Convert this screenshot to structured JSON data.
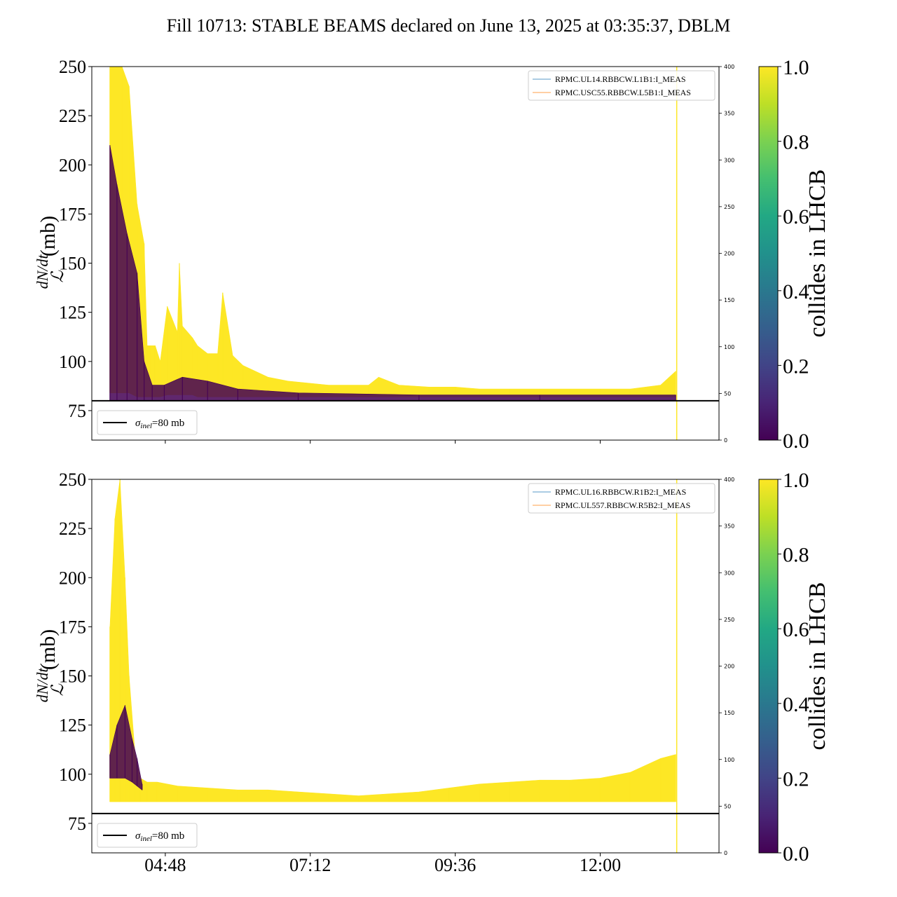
{
  "title": "Fill 10713: STABLE BEAMS declared on June 13, 2025 at 03:35:37, DBLM",
  "colors": {
    "yellow": "#fde725",
    "dark_purple": "#440154",
    "blue_line": "#1f77b4",
    "orange_line": "#ff7f0e",
    "threshold": "#000000"
  },
  "colorbar": {
    "label": "collides in LHCB",
    "colormap": "viridis",
    "ticks": [
      "0.0",
      "0.2",
      "0.4",
      "0.6",
      "0.8",
      "1.0"
    ]
  },
  "chart_data": [
    {
      "type": "line",
      "panel": "top",
      "xlabel": "",
      "ylabel": "dN/dt / ℒ (mb)",
      "ylim": [
        60,
        250
      ],
      "y_ticks": [
        75,
        100,
        125,
        150,
        175,
        200,
        225,
        250
      ],
      "y2lim": [
        0,
        400
      ],
      "y2_ticks": [
        0,
        50,
        100,
        150,
        200,
        250,
        300,
        350,
        400
      ],
      "x_ticks": [
        "04:48",
        "07:12",
        "09:36",
        "12:00"
      ],
      "x_tick_labels_shown": false,
      "xlim": [
        "03:35",
        "13:58"
      ],
      "grid": false,
      "legend_upper": {
        "placement": "top-right",
        "entries": [
          {
            "label": "RPMC.UL14.RBBCW.L1B1:I_MEAS",
            "color": "#1f77b4"
          },
          {
            "label": "RPMC.USC55.RBBCW.L5B1:I_MEAS",
            "color": "#ff7f0e"
          }
        ]
      },
      "legend_lower": {
        "placement": "bottom-left",
        "label": "σinel=80 mb",
        "threshold": 80
      },
      "envelope_collides_1": {
        "x": [
          "03:53",
          "04:05",
          "04:12",
          "04:20",
          "04:27",
          "04:30",
          "04:33",
          "04:38",
          "04:43",
          "04:50",
          "05:00",
          "05:02",
          "05:05",
          "05:15",
          "05:20",
          "05:30",
          "05:40",
          "05:45",
          "05:55",
          "06:05",
          "06:30",
          "06:50",
          "07:30",
          "08:10",
          "08:20",
          "08:40",
          "09:10",
          "09:36",
          "10:00",
          "10:30",
          "11:00",
          "11:30",
          "12:00",
          "12:30",
          "13:00",
          "13:15"
        ],
        "upper": [
          250,
          250,
          240,
          180,
          160,
          108,
          108,
          108,
          100,
          128,
          115,
          150,
          118,
          112,
          108,
          104,
          104,
          135,
          103,
          98,
          92,
          90,
          88,
          88,
          92,
          88,
          87,
          87,
          86,
          86,
          86,
          86,
          86,
          86,
          88,
          95
        ],
        "lower": [
          84,
          84,
          84,
          82,
          82,
          82,
          82,
          82,
          82,
          83,
          83,
          83,
          83,
          83,
          82,
          82,
          82,
          82,
          82,
          82,
          82,
          82,
          82,
          82,
          82,
          82,
          82,
          82,
          82,
          82,
          82,
          82,
          82,
          82,
          82,
          82
        ]
      },
      "envelope_collides_0": {
        "x": [
          "03:53",
          "04:00",
          "04:10",
          "04:20",
          "04:27",
          "04:35",
          "04:47",
          "05:05",
          "05:30",
          "06:00",
          "07:00",
          "09:00",
          "11:00",
          "13:15"
        ],
        "upper": [
          210,
          190,
          165,
          145,
          100,
          88,
          88,
          92,
          90,
          86,
          84,
          83,
          83,
          83
        ],
        "lower": [
          80,
          80,
          80,
          80,
          80,
          80,
          80,
          80,
          80,
          80,
          80,
          80,
          80,
          80
        ]
      },
      "vertical_marker_x": "13:16"
    },
    {
      "type": "line",
      "panel": "bottom",
      "xlabel": "",
      "ylabel": "dN/dt / ℒ (mb)",
      "ylim": [
        60,
        250
      ],
      "y_ticks": [
        75,
        100,
        125,
        150,
        175,
        200,
        225,
        250
      ],
      "y2lim": [
        0,
        400
      ],
      "y2_ticks": [
        0,
        50,
        100,
        150,
        200,
        250,
        300,
        350,
        400
      ],
      "x_ticks": [
        "04:48",
        "07:12",
        "09:36",
        "12:00"
      ],
      "x_tick_labels_shown": true,
      "xlim": [
        "03:35",
        "13:58"
      ],
      "grid": false,
      "legend_upper": {
        "placement": "top-right",
        "entries": [
          {
            "label": "RPMC.UL16.RBBCW.R1B2:I_MEAS",
            "color": "#1f77b4"
          },
          {
            "label": "RPMC.UL557.RBBCW.R5B2:I_MEAS",
            "color": "#ff7f0e"
          }
        ]
      },
      "legend_lower": {
        "placement": "bottom-left",
        "label": "σinel=80 mb",
        "threshold": 80
      },
      "envelope_collides_1": {
        "x": [
          "03:53",
          "03:58",
          "04:03",
          "04:08",
          "04:12",
          "04:18",
          "04:23",
          "04:30",
          "04:40",
          "05:00",
          "05:30",
          "06:00",
          "06:30",
          "07:00",
          "07:30",
          "08:00",
          "08:30",
          "09:00",
          "09:30",
          "10:00",
          "10:30",
          "11:00",
          "11:30",
          "12:00",
          "12:30",
          "13:00",
          "13:15"
        ],
        "upper": [
          175,
          230,
          250,
          200,
          150,
          110,
          98,
          96,
          96,
          94,
          93,
          92,
          92,
          91,
          90,
          89,
          90,
          91,
          93,
          95,
          96,
          97,
          97,
          98,
          101,
          108,
          110
        ],
        "lower": [
          86,
          86,
          86,
          86,
          86,
          86,
          86,
          86,
          86,
          86,
          86,
          86,
          86,
          86,
          86,
          86,
          86,
          86,
          86,
          86,
          86,
          86,
          86,
          86,
          86,
          86,
          86
        ]
      },
      "envelope_collides_0": {
        "x": [
          "03:53",
          "04:00",
          "04:08",
          "04:15",
          "04:20",
          "04:25"
        ],
        "upper": [
          110,
          125,
          135,
          118,
          108,
          95
        ],
        "lower": [
          98,
          98,
          98,
          96,
          94,
          92
        ]
      },
      "vertical_marker_x": "13:16"
    }
  ]
}
